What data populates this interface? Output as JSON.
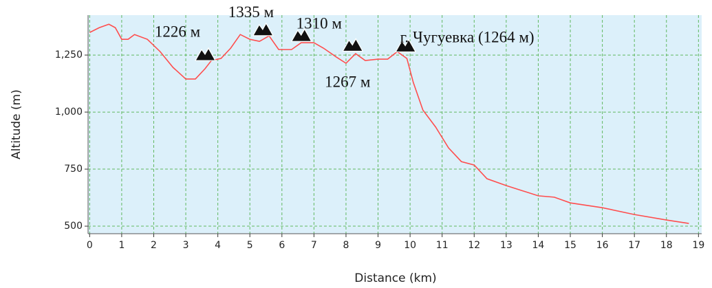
{
  "chart_data": {
    "type": "line",
    "x_label": "Distance (km)",
    "y_label": "Altitude (m)",
    "x": [
      0,
      0.3,
      0.6,
      0.8,
      1.0,
      1.2,
      1.4,
      1.8,
      2.2,
      2.6,
      3.0,
      3.3,
      3.6,
      3.8,
      4.1,
      4.4,
      4.7,
      5.0,
      5.3,
      5.6,
      5.9,
      6.3,
      6.6,
      7.0,
      7.3,
      7.7,
      8.0,
      8.3,
      8.6,
      9.0,
      9.3,
      9.6,
      9.9,
      10.1,
      10.4,
      10.8,
      11.2,
      11.6,
      12.0,
      12.4,
      13.0,
      14.0,
      14.5,
      15.0,
      16.0,
      17.0,
      18.0,
      18.7
    ],
    "series": [
      {
        "name": "Altitude",
        "color": "#ff4d4d",
        "values": [
          1349,
          1370,
          1385,
          1370,
          1319,
          1319,
          1340,
          1319,
          1265,
          1196,
          1145,
          1145,
          1190,
          1226,
          1235,
          1280,
          1340,
          1319,
          1310,
          1334,
          1274,
          1274,
          1304,
          1304,
          1280,
          1241,
          1214,
          1256,
          1226,
          1232,
          1232,
          1265,
          1235,
          1130,
          1009,
          934,
          843,
          783,
          768,
          708,
          678,
          633,
          627,
          602,
          581,
          551,
          527,
          512
        ]
      }
    ],
    "xlim": [
      -0.05,
      19.1
    ],
    "ylim": [
      467,
      1425
    ],
    "xticks": [
      0,
      1,
      2,
      3,
      4,
      5,
      6,
      7,
      8,
      9,
      10,
      11,
      12,
      13,
      14,
      15,
      16,
      17,
      18,
      19
    ],
    "yticks": [
      500,
      750,
      {
        "value": 1000,
        "label": "1,000"
      },
      {
        "value": 1250,
        "label": "1,250"
      }
    ],
    "grid": true,
    "annotations": [
      {
        "text": "1226 м",
        "x": 3.6,
        "y": 1226
      },
      {
        "text": "1335 м",
        "x": 5.4,
        "y": 1335
      },
      {
        "text": "1310 м",
        "x": 6.6,
        "y": 1310
      },
      {
        "text": "1267 м",
        "x": 8.2,
        "y": 1267
      },
      {
        "text": "г. Чугуевка (1264 м)",
        "x": 9.85,
        "y": 1264
      }
    ]
  }
}
